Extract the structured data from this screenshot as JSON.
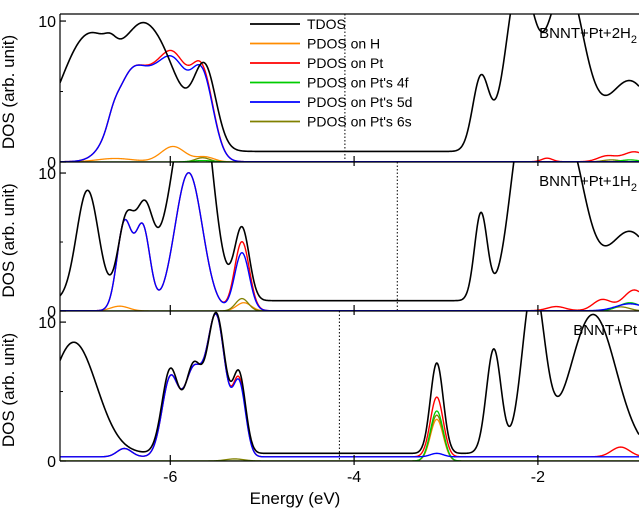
{
  "chart_data": {
    "type": "line",
    "xlabel": "Energy (eV)",
    "xlim": [
      -7.2,
      -0.9
    ],
    "xticks": [
      -6,
      -4,
      -2
    ],
    "xticklabels": [
      "-6",
      "-4",
      "-2"
    ],
    "legend": {
      "placement": "top-center",
      "entries": [
        {
          "label": "TDOS",
          "color": "#000000"
        },
        {
          "label": "PDOS on H",
          "color": "#ff8c00"
        },
        {
          "label": "PDOS on Pt",
          "color": "#ff0000"
        },
        {
          "label": "PDOS on Pt's 4f",
          "color": "#00cc00"
        },
        {
          "label": "PDOS on Pt's 5d",
          "color": "#0000ff"
        },
        {
          "label": "PDOS on Pt's 6s",
          "color": "#808000"
        }
      ]
    },
    "panels": [
      {
        "label": "BNNT+Pt+2H2",
        "label_main": "BNNT+Pt+2H",
        "label_sub": "2",
        "ylabel": "DOS (arb. unit)",
        "ylim": [
          0,
          10.5
        ],
        "yticks": [
          0,
          10
        ],
        "yticklabels": [
          "0",
          "10"
        ],
        "fermi": -4.1,
        "tdos": {
          "peaks": [
            [
              -6.9,
              0.3,
              8
            ],
            [
              -6.2,
              0.28,
              8
            ],
            [
              -5.62,
              0.12,
              5.3
            ],
            [
              -6.35,
              0.12,
              0.6
            ],
            [
              -6.65,
              0.06,
              0.5
            ],
            [
              -2.62,
              0.09,
              5.2
            ],
            [
              -2.2,
              0.15,
              12
            ],
            [
              -1.7,
              0.2,
              12
            ],
            [
              -1.0,
              0.25,
              5
            ]
          ],
          "base": 0.75
        },
        "pt": {
          "peaks": [
            [
              -6.4,
              0.2,
              6.5
            ],
            [
              -5.95,
              0.15,
              6.6
            ],
            [
              -6.15,
              0.12,
              1.5
            ],
            [
              -5.65,
              0.12,
              6.0
            ],
            [
              -6.62,
              0.06,
              0.6
            ],
            [
              -1.9,
              0.06,
              0.25
            ],
            [
              -1.25,
              0.1,
              0.4
            ],
            [
              -0.95,
              0.12,
              0.7
            ]
          ],
          "base": 0.02
        },
        "d5": {
          "peaks": [
            [
              -6.4,
              0.2,
              6.5
            ],
            [
              -5.95,
              0.15,
              6.2
            ],
            [
              -6.15,
              0.12,
              1.5
            ],
            [
              -5.65,
              0.12,
              5.8
            ],
            [
              -6.62,
              0.06,
              0.6
            ]
          ],
          "base": 0.02
        },
        "f4": {
          "peaks": [
            [
              -5.65,
              0.12,
              0.1
            ],
            [
              -1.0,
              0.1,
              0.15
            ]
          ],
          "base": 0.0
        },
        "h": {
          "peaks": [
            [
              -5.97,
              0.13,
              1.1
            ],
            [
              -5.62,
              0.1,
              0.35
            ],
            [
              -6.6,
              0.2,
              0.25
            ]
          ],
          "base": 0.0
        },
        "s6": {
          "peaks": [
            [
              -5.65,
              0.08,
              0.3
            ],
            [
              -1.2,
              0.1,
              0.15
            ]
          ],
          "base": 0.0
        }
      },
      {
        "label": "BNNT+Pt+1H2",
        "label_main": "BNNT+Pt+1H",
        "label_sub": "2",
        "ylabel": "DOS (arb. unit)",
        "ylim": [
          0,
          10.8
        ],
        "yticks": [
          0,
          10
        ],
        "yticklabels": [
          "0",
          "10"
        ],
        "fermi": -3.53,
        "tdos": {
          "peaks": [
            [
              -6.9,
              0.12,
              8
            ],
            [
              -6.48,
              0.09,
              5.8
            ],
            [
              -6.28,
              0.09,
              5.8
            ],
            [
              -5.85,
              0.2,
              10
            ],
            [
              -5.68,
              0.15,
              10
            ],
            [
              -5.22,
              0.08,
              5.2
            ],
            [
              -2.62,
              0.07,
              6.3
            ],
            [
              -2.15,
              0.15,
              13
            ],
            [
              -1.7,
              0.2,
              12
            ],
            [
              -1.0,
              0.25,
              5
            ]
          ],
          "base": 0.75
        },
        "pt": {
          "peaks": [
            [
              -6.5,
              0.08,
              6.3
            ],
            [
              -6.3,
              0.08,
              6.0
            ],
            [
              -5.8,
              0.15,
              10
            ],
            [
              -5.22,
              0.08,
              5.0
            ],
            [
              -1.8,
              0.1,
              0.3
            ],
            [
              -1.3,
              0.1,
              0.8
            ],
            [
              -0.95,
              0.12,
              1.5
            ]
          ],
          "base": 0.02
        },
        "d5": {
          "peaks": [
            [
              -6.5,
              0.08,
              6.3
            ],
            [
              -6.3,
              0.08,
              6.0
            ],
            [
              -5.8,
              0.15,
              10
            ],
            [
              -5.22,
              0.08,
              4.2
            ],
            [
              -1.0,
              0.15,
              0.5
            ]
          ],
          "base": 0.02
        },
        "f4": {
          "peaks": [
            [
              -1.0,
              0.12,
              0.6
            ]
          ],
          "base": 0.0
        },
        "h": {
          "peaks": [
            [
              -6.55,
              0.1,
              0.35
            ],
            [
              -5.2,
              0.08,
              0.6
            ]
          ],
          "base": 0.0
        },
        "s6": {
          "peaks": [
            [
              -5.22,
              0.07,
              0.9
            ],
            [
              -1.1,
              0.1,
              0.3
            ]
          ],
          "base": 0.0
        }
      },
      {
        "label": "BNNT+Pt",
        "label_main": "BNNT+Pt",
        "label_sub": "",
        "ylabel": "DOS (arb. unit)",
        "ylim": [
          0,
          10.8
        ],
        "yticks": [
          0,
          10
        ],
        "yticklabels": [
          "0",
          "10"
        ],
        "fermi": -4.16,
        "tdos": {
          "peaks": [
            [
              -7.05,
              0.25,
              8
            ],
            [
              -6.0,
              0.09,
              6
            ],
            [
              -5.75,
              0.09,
              6
            ],
            [
              -5.5,
              0.1,
              10
            ],
            [
              -5.25,
              0.07,
              5.5
            ],
            [
              -3.1,
              0.07,
              6.5
            ],
            [
              -2.48,
              0.08,
              7.5
            ],
            [
              -2.05,
              0.12,
              12
            ],
            [
              -1.4,
              0.25,
              10
            ]
          ],
          "base": 0.55
        },
        "pt": {
          "peaks": [
            [
              -6.5,
              0.08,
              0.6
            ],
            [
              -6.0,
              0.09,
              5.6
            ],
            [
              -5.75,
              0.1,
              6
            ],
            [
              -5.5,
              0.1,
              10
            ],
            [
              -5.25,
              0.07,
              5.3
            ],
            [
              -3.1,
              0.07,
              4.3
            ],
            [
              -1.1,
              0.1,
              0.7
            ]
          ],
          "base": 0.3
        },
        "d5": {
          "peaks": [
            [
              -6.5,
              0.08,
              0.6
            ],
            [
              -6.0,
              0.09,
              5.6
            ],
            [
              -5.75,
              0.1,
              6
            ],
            [
              -5.5,
              0.1,
              10
            ],
            [
              -5.25,
              0.07,
              5.1
            ],
            [
              -3.1,
              0.07,
              0.25
            ]
          ],
          "base": 0.3
        },
        "f4": {
          "peaks": [
            [
              -3.1,
              0.07,
              3.6
            ]
          ],
          "base": 0.0
        },
        "h": {
          "peaks": [
            [
              -3.1,
              0.07,
              3.0
            ]
          ],
          "base": 0.0
        },
        "s6": {
          "peaks": [
            [
              -3.1,
              0.07,
              3.3
            ],
            [
              -5.3,
              0.1,
              0.15
            ]
          ],
          "base": 0.0
        }
      }
    ]
  }
}
